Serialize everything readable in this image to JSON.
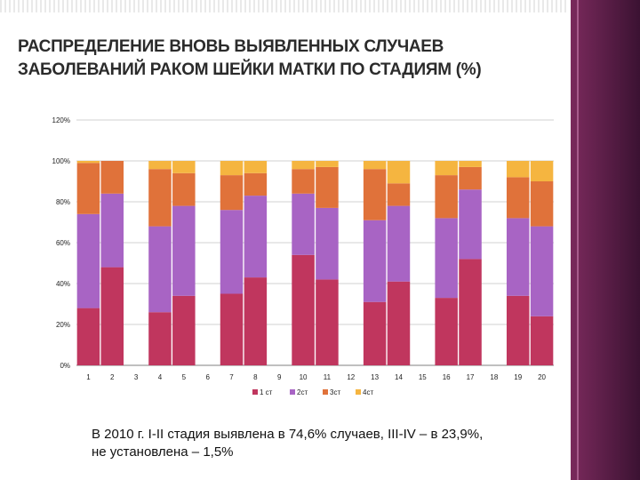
{
  "title": {
    "line1": "РАСПРЕДЕЛЕНИЕ ВНОВЬ ВЫЯВЛЕННЫХ СЛУЧАЕВ",
    "line2": "ЗАБОЛЕВАНИЙ РАКОМ ШЕЙКИ МАТКИ ПО СТАДИЯМ (%)"
  },
  "caption": {
    "line1": "В 2010 г. I-II стадия выявлена в 74,6% случаев, III-IV – в 23,9%,",
    "line2": "не установлена – 1,5%"
  },
  "colors": {
    "s1": "#c0365e",
    "s2": "#a864c4",
    "s3": "#e0723a",
    "s4": "#f5b540",
    "grid": "#d0d0d0",
    "axis": "#808080"
  },
  "chart_data": {
    "type": "bar",
    "stacked": true,
    "categories": [
      "1",
      "2",
      "3",
      "4",
      "5",
      "6",
      "7",
      "8",
      "9",
      "10",
      "11",
      "12",
      "13",
      "14",
      "15",
      "16",
      "17",
      "18",
      "19",
      "20"
    ],
    "yticks": [
      "0%",
      "20%",
      "40%",
      "60%",
      "80%",
      "100%",
      "120%"
    ],
    "ylim": [
      0,
      120
    ],
    "legend_position": "bottom",
    "series": [
      {
        "name": "1 ст",
        "values": [
          28,
          48,
          null,
          26,
          34,
          null,
          35,
          43,
          null,
          54,
          42,
          null,
          31,
          41,
          null,
          33,
          52,
          null,
          34,
          24
        ]
      },
      {
        "name": "2ст",
        "values": [
          46,
          36,
          null,
          42,
          44,
          null,
          41,
          40,
          null,
          30,
          35,
          null,
          40,
          37,
          null,
          39,
          34,
          null,
          38,
          44
        ]
      },
      {
        "name": "3ст",
        "values": [
          25,
          16,
          null,
          28,
          16,
          null,
          17,
          11,
          null,
          12,
          20,
          null,
          25,
          11,
          null,
          21,
          11,
          null,
          20,
          22
        ]
      },
      {
        "name": "4ст",
        "values": [
          1,
          0,
          null,
          4,
          6,
          null,
          7,
          6,
          null,
          4,
          3,
          null,
          4,
          11,
          null,
          7,
          3,
          null,
          8,
          10
        ]
      }
    ]
  }
}
